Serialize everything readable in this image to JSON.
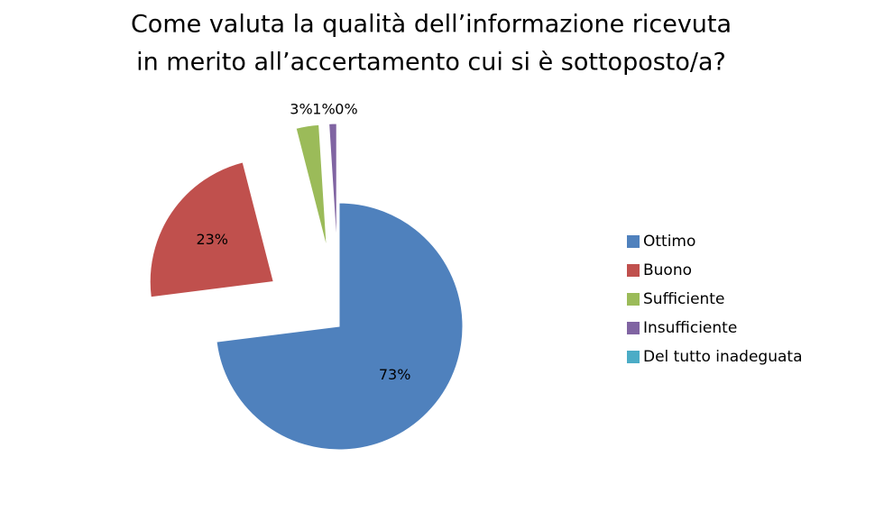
{
  "chart_data": {
    "type": "pie",
    "title": [
      "Come valuta la qualità dell’informazione ricevuta",
      "in merito all’accertamento cui si è sottoposto/a?"
    ],
    "categories": [
      "Ottimo",
      "Buono",
      "Sufficiente",
      "Insufficiente",
      "Del tutto inadeguata"
    ],
    "values": [
      73,
      23,
      3,
      1,
      0
    ],
    "value_labels": [
      "73%",
      "23%",
      "3%",
      "1%",
      "0%"
    ],
    "colors": [
      "#4f81bd",
      "#c0504d",
      "#9bbb59",
      "#8064a2",
      "#4bacc6"
    ],
    "legend": "right"
  }
}
